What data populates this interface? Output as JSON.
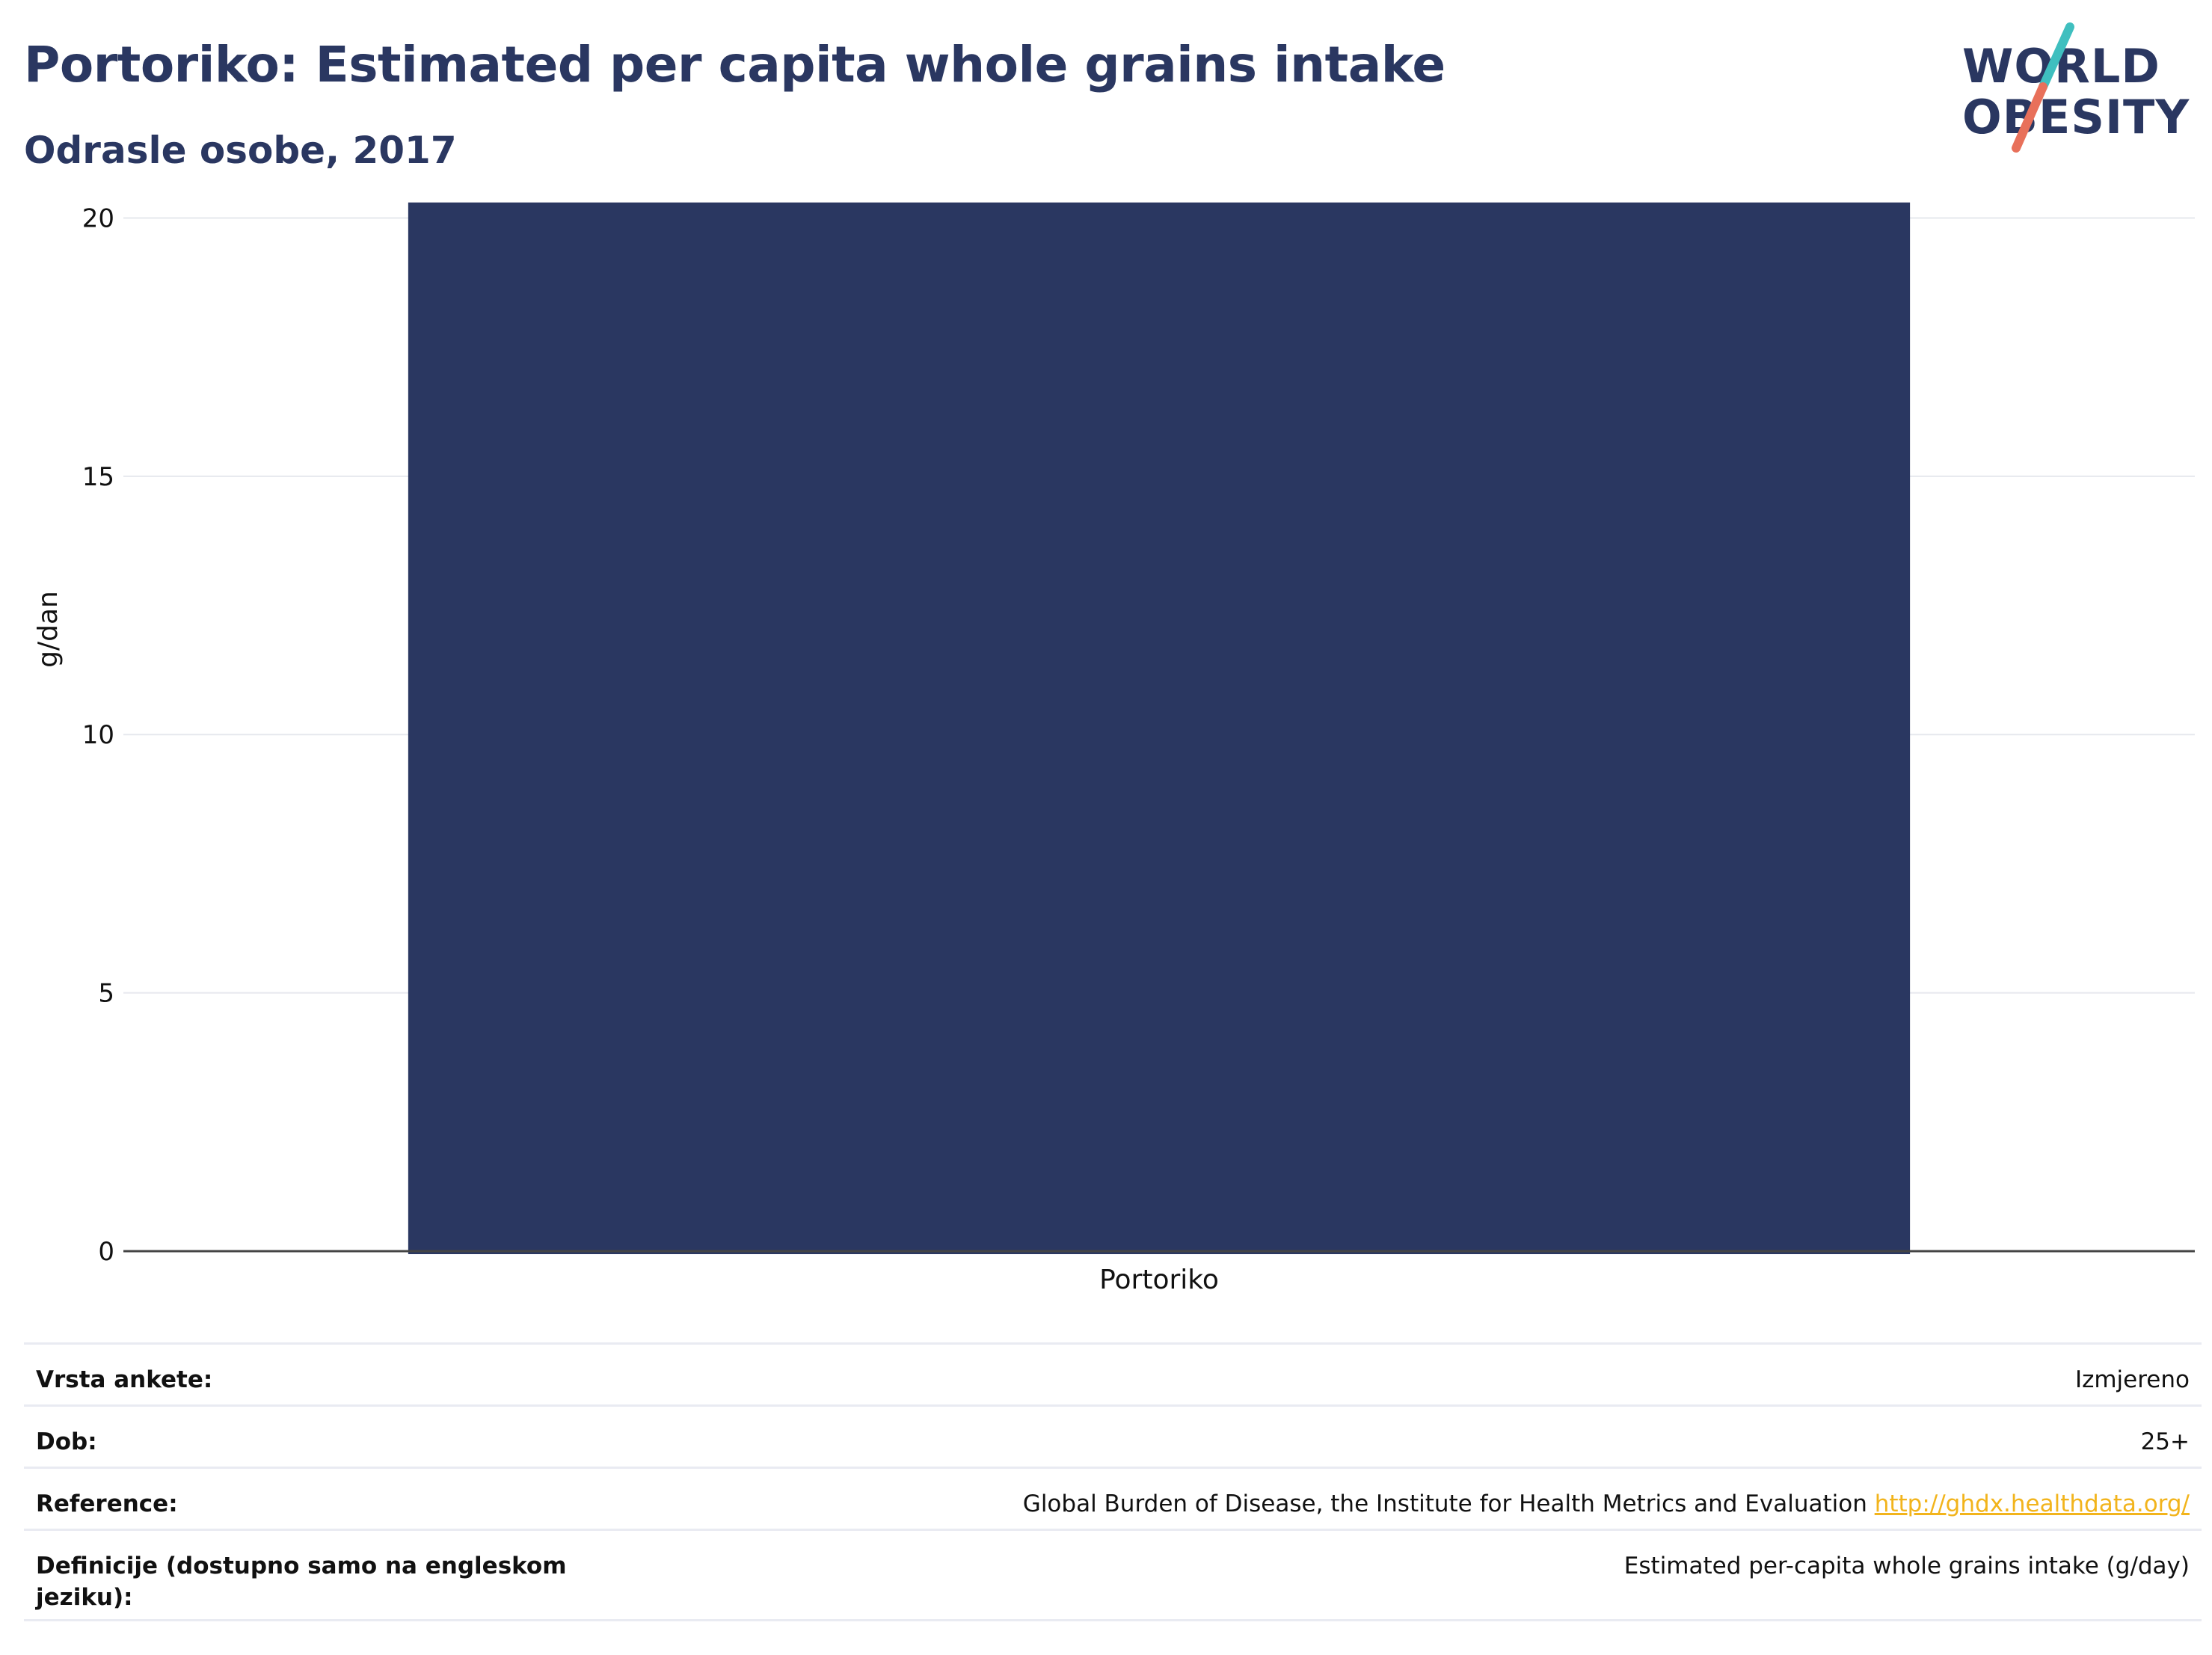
{
  "header": {
    "title": "Portoriko: Estimated per capita whole grains intake",
    "subtitle": "Odrasle osobe, 2017"
  },
  "logo": {
    "line1": "WORLD",
    "line2": "OBESITY",
    "accent_colors": [
      "#3fbfbf",
      "#e8705a"
    ]
  },
  "chart_data": {
    "type": "bar",
    "categories": [
      "Portoriko"
    ],
    "values": [
      20.3
    ],
    "ylabel": "g/dan",
    "ylim": [
      0,
      20.6
    ],
    "yticks": [
      0,
      5,
      10,
      15,
      20
    ],
    "grid": true,
    "bar_color": "#2a3761"
  },
  "info": {
    "rows": [
      {
        "label": "Vrsta ankete:",
        "value": "Izmjereno"
      },
      {
        "label": "Dob:",
        "value": "25+"
      },
      {
        "label": "Reference:",
        "value": "Global Burden of Disease, the Institute for Health Metrics and Evaluation",
        "link": "http://ghdx.healthdata.org/"
      },
      {
        "label": "Definicije (dostupno samo na engleskom jeziku):",
        "value": "Estimated per-capita whole grains intake (g/day)"
      }
    ]
  }
}
